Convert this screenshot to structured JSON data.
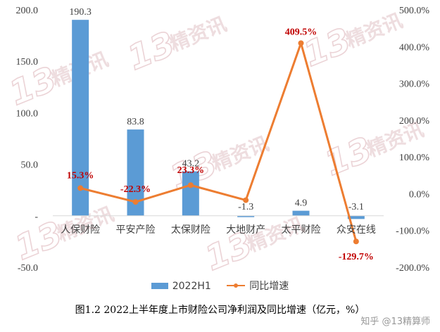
{
  "chart_data": {
    "type": "bar",
    "categories": [
      "人保财险",
      "平安产险",
      "太保财险",
      "大地财产",
      "太平财险",
      "众安在线"
    ],
    "series": [
      {
        "name": "2022H1",
        "type": "bar",
        "axis": "left",
        "color": "#5b9bd5",
        "values": [
          190.3,
          83.8,
          43.2,
          -1.3,
          4.9,
          -3.1
        ],
        "labels": [
          "190.3",
          "83.8",
          "43.2",
          "-1.3",
          "4.9",
          "-3.1"
        ]
      },
      {
        "name": "同比增速",
        "type": "line",
        "axis": "right",
        "color": "#ed7d31",
        "values": [
          15.3,
          -22.3,
          23.3,
          -17.5,
          409.5,
          -129.7
        ],
        "labels": [
          "15.3%",
          "-22.3%",
          "23.3%",
          "",
          "409.5%",
          "-129.7%"
        ],
        "label_color": "#c00000"
      }
    ],
    "y_left": {
      "range": [
        -50,
        200
      ],
      "ticks": [
        "-50.0",
        "-",
        "50.0",
        "100.0",
        "150.0",
        "200.0"
      ]
    },
    "y_right": {
      "range": [
        -200,
        500
      ],
      "ticks": [
        "-200.0%",
        "-100.0%",
        "0.0%",
        "100.0%",
        "200.0%",
        "300.0%",
        "400.0%",
        "500.0%"
      ]
    },
    "grid": false,
    "legend": "bottom",
    "title": "图1.2  2022上半年度上市财险公司净利润及同比增速（亿元，%）"
  },
  "watermark": {
    "number": "13",
    "text": "精资讯"
  },
  "credit": "知乎 @13精算师"
}
